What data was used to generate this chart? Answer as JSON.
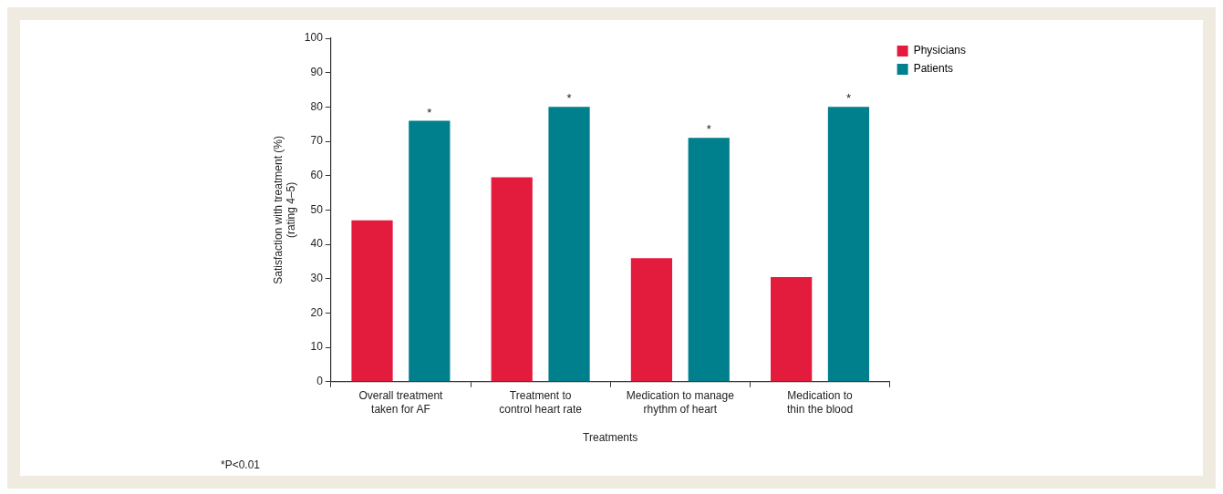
{
  "chart_data": {
    "type": "bar",
    "xlabel": "Treatments",
    "ylabel": "Satisfaction with treatment (%)\n(rating 4–5)",
    "categories": [
      "Overall treatment taken for AF",
      "Treatment to control heart rate",
      "Medication to manage rhythm of heart",
      "Medication to thin the blood"
    ],
    "series": [
      {
        "name": "Physicians",
        "color": "#e31b3c",
        "values": [
          47,
          59.5,
          36,
          30.5
        ]
      },
      {
        "name": "Patients",
        "color": "#007f8c",
        "values": [
          76,
          80,
          71,
          80
        ],
        "value_labels": [
          "*",
          "*",
          "*",
          "*"
        ]
      }
    ],
    "ylim": [
      0,
      100
    ],
    "yticks": [
      0,
      10,
      20,
      30,
      40,
      50,
      60,
      70,
      80,
      90,
      100
    ],
    "grid": false,
    "legend": "top right",
    "annotations": [
      "*P<0.01"
    ]
  }
}
